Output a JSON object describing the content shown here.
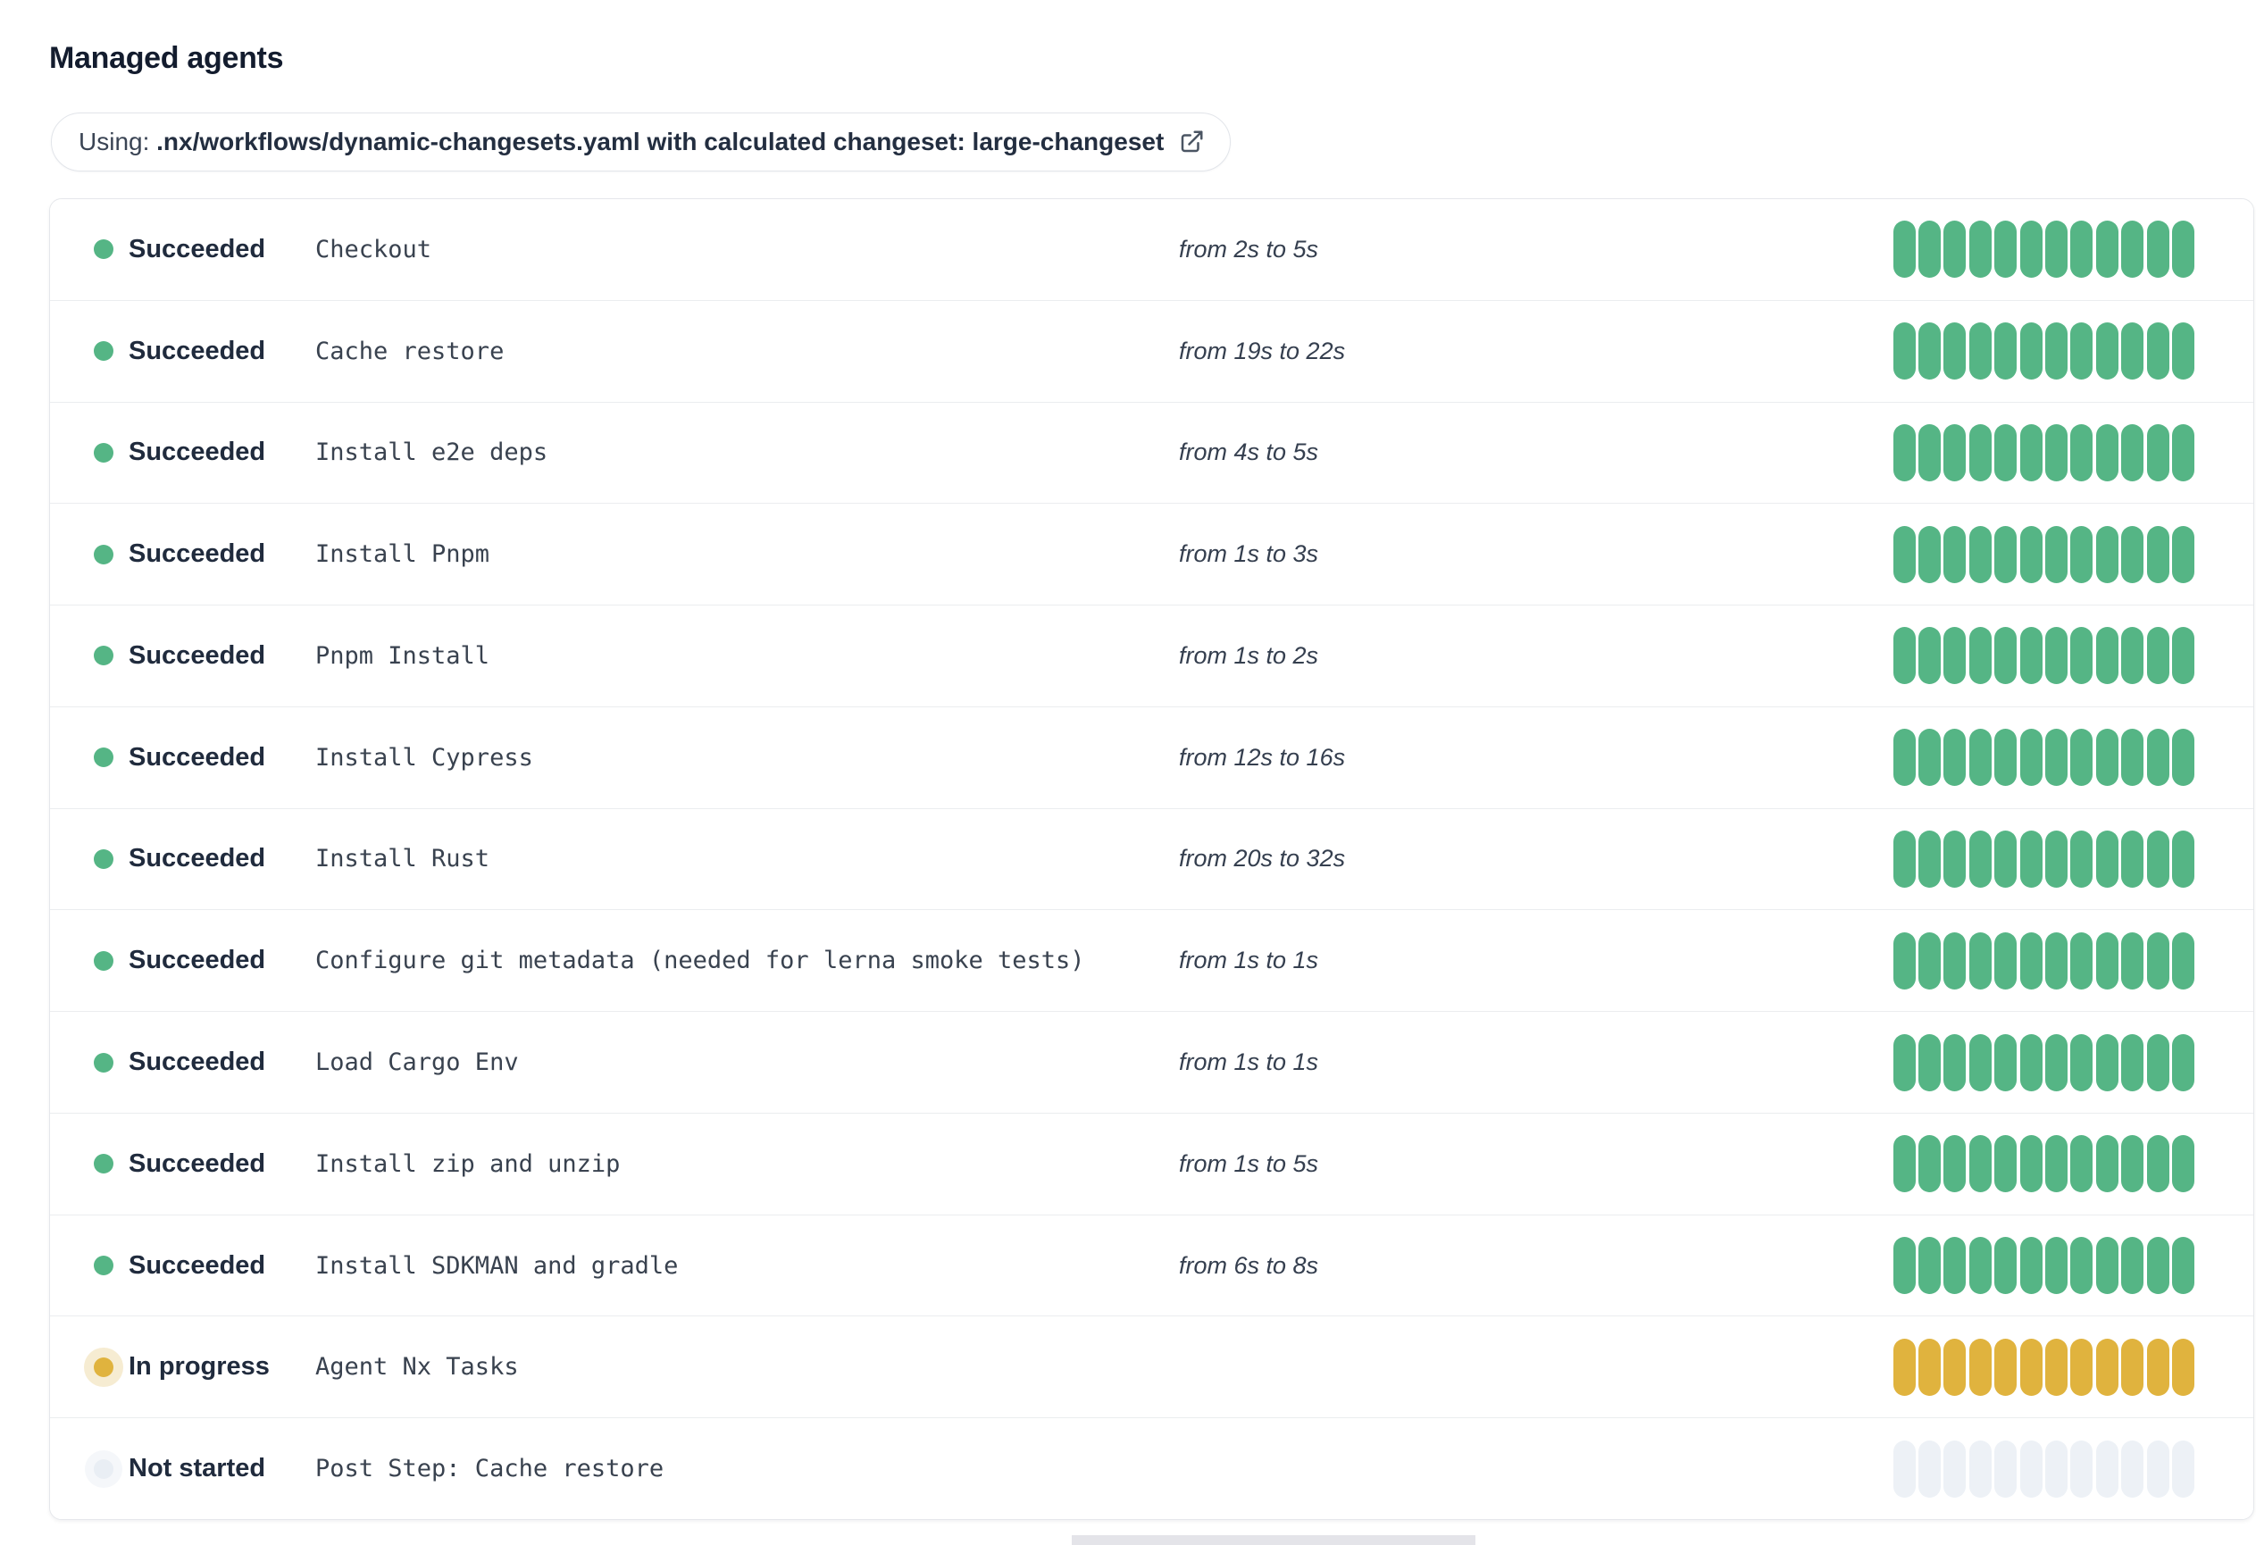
{
  "page": {
    "title": "Managed agents"
  },
  "workflow_banner": {
    "prefix": "Using: ",
    "highlight": ".nx/workflows/dynamic-changesets.yaml with calculated changeset: large-changeset",
    "icon": "external-link-icon"
  },
  "colors": {
    "succeeded": "#55b585",
    "in_progress": "#e0b33e",
    "not_started": "#edf1f6",
    "border": "#e5e7eb",
    "divider": "#ebedef",
    "text_dark": "#202b3d",
    "text_step": "#39424f"
  },
  "agents": {
    "segments_per_bar": 12,
    "rows": [
      {
        "status": "Succeeded",
        "status_key": "succeeded",
        "step": "Checkout",
        "duration": "from 2s to 5s"
      },
      {
        "status": "Succeeded",
        "status_key": "succeeded",
        "step": "Cache restore",
        "duration": "from 19s to 22s"
      },
      {
        "status": "Succeeded",
        "status_key": "succeeded",
        "step": "Install e2e deps",
        "duration": "from 4s to 5s"
      },
      {
        "status": "Succeeded",
        "status_key": "succeeded",
        "step": "Install Pnpm",
        "duration": "from 1s to 3s"
      },
      {
        "status": "Succeeded",
        "status_key": "succeeded",
        "step": "Pnpm Install",
        "duration": "from 1s to 2s"
      },
      {
        "status": "Succeeded",
        "status_key": "succeeded",
        "step": "Install Cypress",
        "duration": "from 12s to 16s"
      },
      {
        "status": "Succeeded",
        "status_key": "succeeded",
        "step": "Install Rust",
        "duration": "from 20s to 32s"
      },
      {
        "status": "Succeeded",
        "status_key": "succeeded",
        "step": "Configure git metadata (needed for lerna smoke tests)",
        "duration": "from 1s to 1s"
      },
      {
        "status": "Succeeded",
        "status_key": "succeeded",
        "step": "Load Cargo Env",
        "duration": "from 1s to 1s"
      },
      {
        "status": "Succeeded",
        "status_key": "succeeded",
        "step": "Install zip and unzip",
        "duration": "from 1s to 5s"
      },
      {
        "status": "Succeeded",
        "status_key": "succeeded",
        "step": "Install SDKMAN and gradle",
        "duration": "from 6s to 8s"
      },
      {
        "status": "In progress",
        "status_key": "in_progress",
        "step": "Agent Nx Tasks",
        "duration": ""
      },
      {
        "status": "Not started",
        "status_key": "not_started",
        "step": "Post Step: Cache restore",
        "duration": ""
      }
    ]
  }
}
